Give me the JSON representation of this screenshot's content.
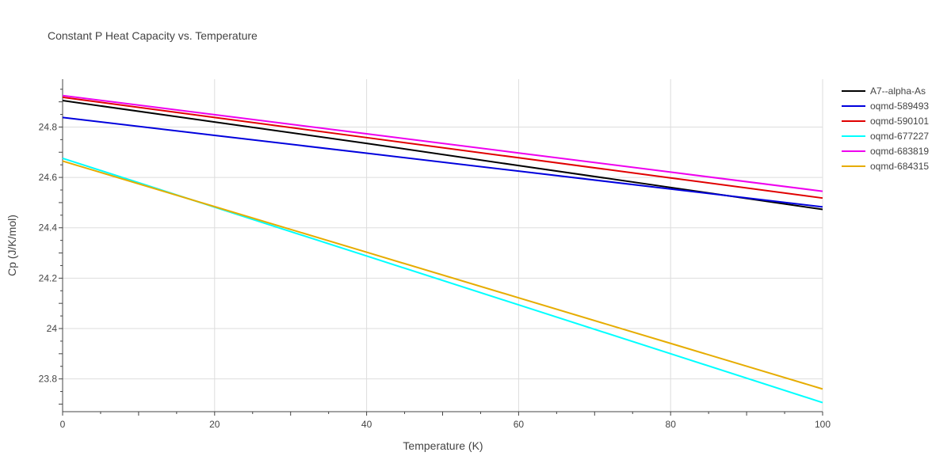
{
  "chart_data": {
    "type": "line",
    "title": "Constant P Heat Capacity vs. Temperature",
    "xlabel": "Temperature (K)",
    "ylabel": "Cp (J/K/mol)",
    "xlim": [
      0,
      100
    ],
    "ylim": [
      23.67,
      24.99
    ],
    "x_ticks": [
      0,
      20,
      40,
      60,
      80,
      100
    ],
    "x_tick_labels": [
      "0",
      "20",
      "40",
      "60",
      "80",
      "100"
    ],
    "y_ticks": [
      23.8,
      24.0,
      24.2,
      24.4,
      24.6,
      24.8
    ],
    "y_tick_labels": [
      "23.8",
      "24",
      "24.2",
      "24.4",
      "24.6",
      "24.8"
    ],
    "grid": true,
    "legend_position": "top-right",
    "series": [
      {
        "name": "A7--alpha-As",
        "color": "#000000",
        "x": [
          0,
          20,
          40,
          60,
          80,
          100
        ],
        "values": [
          24.905,
          24.82,
          24.735,
          24.647,
          24.56,
          24.473
        ]
      },
      {
        "name": "oqmd-589493",
        "color": "#0000dd",
        "x": [
          0,
          20,
          40,
          60,
          80,
          100
        ],
        "values": [
          24.838,
          24.767,
          24.696,
          24.625,
          24.554,
          24.483
        ]
      },
      {
        "name": "oqmd-590101",
        "color": "#e00000",
        "x": [
          0,
          20,
          40,
          60,
          80,
          100
        ],
        "values": [
          24.918,
          24.838,
          24.758,
          24.678,
          24.598,
          24.518
        ]
      },
      {
        "name": "oqmd-677227",
        "color": "#00ffff",
        "x": [
          0,
          20,
          40,
          60,
          80,
          100
        ],
        "values": [
          24.676,
          24.482,
          24.288,
          24.094,
          23.9,
          23.706
        ]
      },
      {
        "name": "oqmd-683819",
        "color": "#ee00ee",
        "x": [
          0,
          20,
          40,
          60,
          80,
          100
        ],
        "values": [
          24.925,
          24.849,
          24.773,
          24.697,
          24.621,
          24.545
        ]
      },
      {
        "name": "oqmd-684315",
        "color": "#e6ac00",
        "x": [
          0,
          20,
          40,
          60,
          80,
          100
        ],
        "values": [
          24.665,
          24.484,
          24.303,
          24.122,
          23.941,
          23.76
        ]
      }
    ]
  }
}
